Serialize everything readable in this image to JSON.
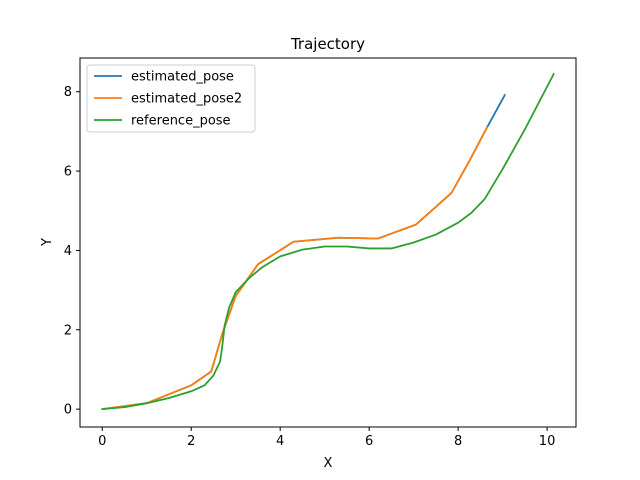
{
  "chart_data": {
    "type": "line",
    "title": "Trajectory",
    "xlabel": "X",
    "ylabel": "Y",
    "xlim": [
      -0.5,
      10.65
    ],
    "ylim": [
      -0.45,
      8.85
    ],
    "xticks": [
      0,
      2,
      4,
      6,
      8,
      10
    ],
    "yticks": [
      0,
      2,
      4,
      6,
      8
    ],
    "grid": false,
    "legend_position": "top-left",
    "series": [
      {
        "name": "estimated_pose",
        "color": "#1f77b4",
        "x": [
          0,
          1,
          2,
          2.45,
          2.7,
          3.0,
          3.5,
          4.3,
          5.3,
          6.2,
          7.05,
          7.85,
          8.25,
          8.65,
          9.05
        ],
        "y": [
          0,
          0.15,
          0.6,
          0.95,
          1.9,
          2.85,
          3.65,
          4.22,
          4.32,
          4.3,
          4.65,
          5.45,
          6.25,
          7.1,
          7.92
        ]
      },
      {
        "name": "estimated_pose2",
        "color": "#ff7f0e",
        "x": [
          0,
          1,
          2,
          2.45,
          2.7,
          3.0,
          3.5,
          4.3,
          5.3,
          6.2,
          7.05,
          7.85,
          8.25,
          8.65
        ],
        "y": [
          0,
          0.15,
          0.6,
          0.95,
          1.9,
          2.85,
          3.65,
          4.22,
          4.32,
          4.3,
          4.65,
          5.45,
          6.25,
          7.1
        ]
      },
      {
        "name": "reference_pose",
        "color": "#2ca02c",
        "x": [
          0,
          0.5,
          1.0,
          1.5,
          2.0,
          2.3,
          2.5,
          2.65,
          2.7,
          2.75,
          2.85,
          3.0,
          3.3,
          3.6,
          4.0,
          4.5,
          5.0,
          5.5,
          6.0,
          6.5,
          7.0,
          7.5,
          8.0,
          8.3,
          8.6,
          9.0,
          9.5,
          10.15
        ],
        "y": [
          0,
          0.05,
          0.15,
          0.28,
          0.45,
          0.6,
          0.85,
          1.2,
          1.6,
          2.1,
          2.55,
          2.95,
          3.3,
          3.58,
          3.85,
          4.02,
          4.1,
          4.1,
          4.05,
          4.05,
          4.2,
          4.4,
          4.7,
          4.95,
          5.3,
          6.05,
          7.05,
          8.45
        ]
      }
    ]
  }
}
